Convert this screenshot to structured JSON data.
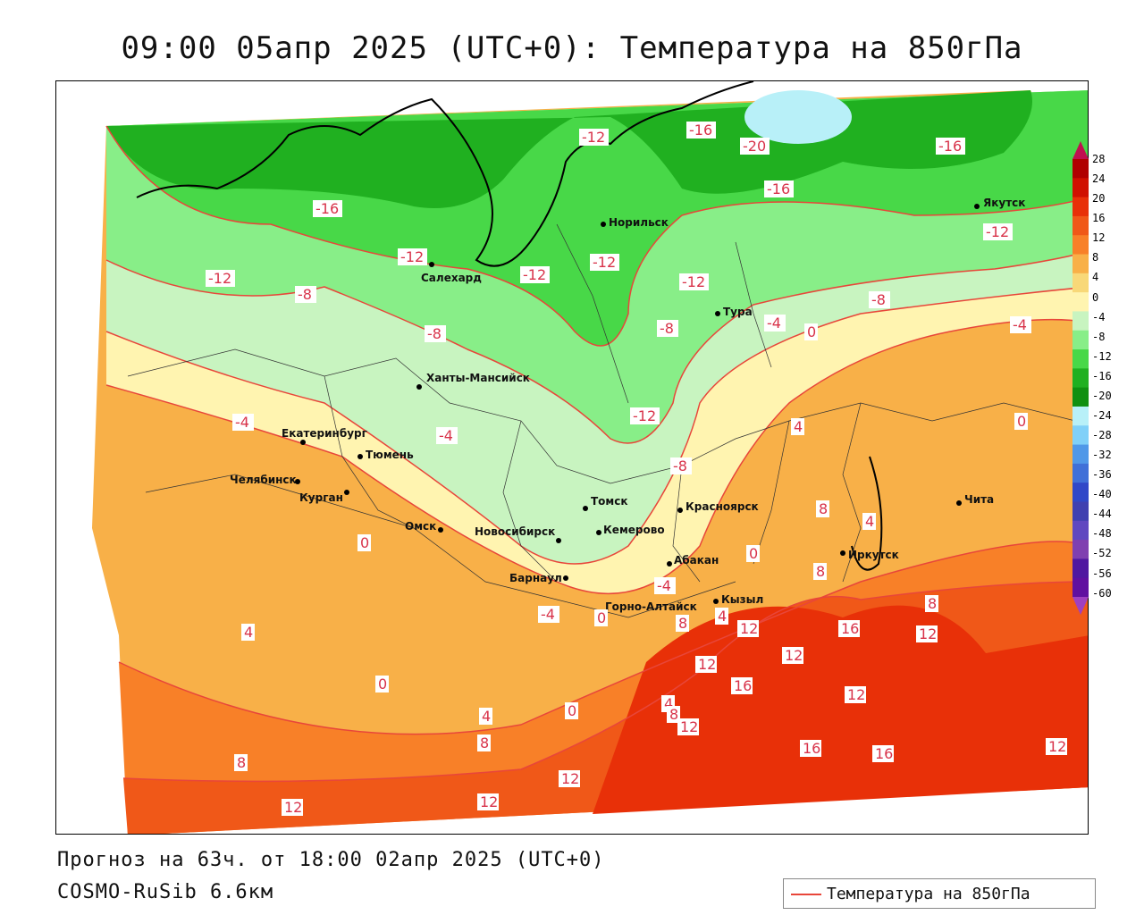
{
  "title": "09:00 05апр 2025 (UTC+0): Температура на 850гПа",
  "forecast": "Прогноз на 63ч. от 18:00 02апр 2025 (UTC+0)",
  "model": "COSMO-RuSib 6.6км",
  "legend": {
    "label": "Температура на 850гПа",
    "color": "#e8463a"
  },
  "colorbar": {
    "ticks": [
      "28",
      "24",
      "20",
      "16",
      "12",
      "8",
      "4",
      "0",
      "-4",
      "-8",
      "-12",
      "-16",
      "-20",
      "-24",
      "-28",
      "-32",
      "-36",
      "-40",
      "-44",
      "-48",
      "-52",
      "-56",
      "-60"
    ],
    "colors": [
      "#c01050",
      "#b00000",
      "#d01000",
      "#e83008",
      "#f05818",
      "#f88028",
      "#f8b048",
      "#f8d878",
      "#fff4b0",
      "#c8f4c0",
      "#88ee88",
      "#48d848",
      "#20b020",
      "#109010",
      "#b8f0f8",
      "#80d0f8",
      "#5098e8",
      "#4070d8",
      "#3048c8",
      "#4040b0",
      "#6048c0",
      "#8040b0",
      "#5018a0",
      "#6010a0",
      "#a040c0"
    ]
  },
  "cities": [
    {
      "name": "Якутск"
    },
    {
      "name": "Норильск"
    },
    {
      "name": "Салехард"
    },
    {
      "name": "Тура"
    },
    {
      "name": "Ханты-Мансийск"
    },
    {
      "name": "Екатеринбург"
    },
    {
      "name": "Тюмень"
    },
    {
      "name": "Челябинск"
    },
    {
      "name": "Курган"
    },
    {
      "name": "Омск"
    },
    {
      "name": "Новосибирск"
    },
    {
      "name": "Томск"
    },
    {
      "name": "Кемерово"
    },
    {
      "name": "Красноярск"
    },
    {
      "name": "Барнаул"
    },
    {
      "name": "Абакан"
    },
    {
      "name": "Иркутск"
    },
    {
      "name": "Чита"
    },
    {
      "name": "Кызыл"
    },
    {
      "name": "Горно-Алтайск"
    }
  ],
  "contour_labels": [
    {
      "text": "-12"
    },
    {
      "text": "-16"
    },
    {
      "text": "-20"
    },
    {
      "text": "-16"
    },
    {
      "text": "-16"
    },
    {
      "text": "-16"
    },
    {
      "text": "-12"
    },
    {
      "text": "-12"
    },
    {
      "text": "-12"
    },
    {
      "text": "-12"
    },
    {
      "text": "-12"
    },
    {
      "text": "-12"
    },
    {
      "text": "-8"
    },
    {
      "text": "-8"
    },
    {
      "text": "-8"
    },
    {
      "text": "-8"
    },
    {
      "text": "-4"
    },
    {
      "text": "0"
    },
    {
      "text": "-4"
    },
    {
      "text": "-12"
    },
    {
      "text": "-8"
    },
    {
      "text": "-4"
    },
    {
      "text": "-4"
    },
    {
      "text": "4"
    },
    {
      "text": "0"
    },
    {
      "text": "0"
    },
    {
      "text": "8"
    },
    {
      "text": "4"
    },
    {
      "text": "0"
    },
    {
      "text": "8"
    },
    {
      "text": "-4"
    },
    {
      "text": "-4"
    },
    {
      "text": "0"
    },
    {
      "text": "8"
    },
    {
      "text": "4"
    },
    {
      "text": "12"
    },
    {
      "text": "16"
    },
    {
      "text": "12"
    },
    {
      "text": "8"
    },
    {
      "text": "4"
    },
    {
      "text": "12"
    },
    {
      "text": "12"
    },
    {
      "text": "16"
    },
    {
      "text": "12"
    },
    {
      "text": "0"
    },
    {
      "text": "4"
    },
    {
      "text": "0"
    },
    {
      "text": "4"
    },
    {
      "text": "8"
    },
    {
      "text": "8"
    },
    {
      "text": "12"
    },
    {
      "text": "16"
    },
    {
      "text": "16"
    },
    {
      "text": "12"
    },
    {
      "text": "12"
    },
    {
      "text": "12"
    },
    {
      "text": "12"
    },
    {
      "text": "8"
    }
  ]
}
